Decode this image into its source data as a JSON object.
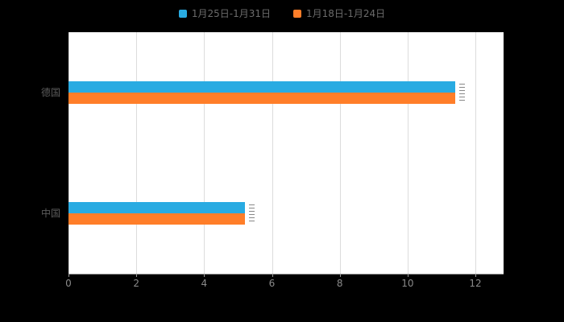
{
  "background": "#000000",
  "legend": {
    "items": [
      {
        "label": "1月25日-1月31日",
        "color": "#29ABE2"
      },
      {
        "label": "1月18日-1月24日",
        "color": "#FF7E29"
      }
    ]
  },
  "chart_data": {
    "type": "bar",
    "orientation": "horizontal",
    "title": "",
    "xlabel": "",
    "ylabel": "",
    "categories": [
      "德国",
      "中国"
    ],
    "series": [
      {
        "name": "1月25日-1月31日",
        "color": "#29ABE2",
        "values": [
          11.4,
          5.2
        ]
      },
      {
        "name": "1月18日-1月24日",
        "color": "#FF7E29",
        "values": [
          11.4,
          5.2
        ]
      }
    ],
    "xlim": [
      0,
      12
    ],
    "x_ticks": [
      0,
      2,
      4,
      6,
      8,
      10,
      12
    ],
    "grid": true,
    "legend_position": "top",
    "plot_background": "#ffffff"
  }
}
